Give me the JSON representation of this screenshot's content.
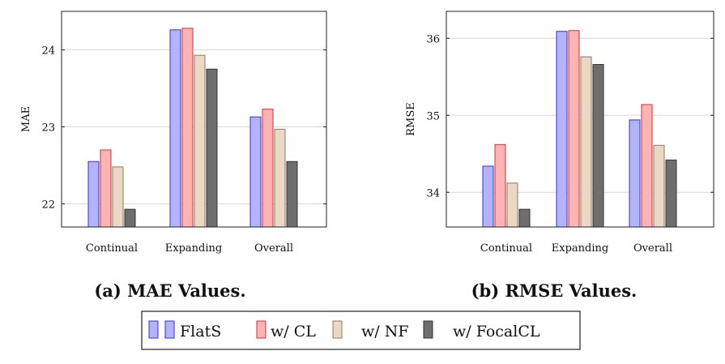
{
  "chart_data": [
    {
      "type": "bar",
      "title": "",
      "caption": "(a) MAE Values.",
      "xlabel": "",
      "ylabel": "MAE",
      "ylim": [
        21.7,
        24.5
      ],
      "yticks": [
        22,
        23,
        24
      ],
      "ytick_labels": [
        "22",
        "23",
        "24"
      ],
      "categories": [
        "Continual",
        "Expanding",
        "Overall"
      ],
      "series": [
        {
          "name": "FlatS",
          "values": [
            22.55,
            24.26,
            23.13
          ]
        },
        {
          "name": "w/ CL",
          "values": [
            22.7,
            24.28,
            23.23
          ]
        },
        {
          "name": "w/ NF",
          "values": [
            22.48,
            23.93,
            22.97
          ]
        },
        {
          "name": "w/ FocalCL",
          "values": [
            21.93,
            23.75,
            22.55
          ]
        }
      ]
    },
    {
      "type": "bar",
      "title": "",
      "caption": "(b) RMSE Values.",
      "xlabel": "",
      "ylabel": "RMSE",
      "ylim": [
        33.55,
        36.35
      ],
      "yticks": [
        34,
        35,
        36
      ],
      "ytick_labels": [
        "34",
        "35",
        "36"
      ],
      "categories": [
        "Continual",
        "Expanding",
        "Overall"
      ],
      "series": [
        {
          "name": "FlatS",
          "values": [
            34.34,
            36.09,
            34.94
          ]
        },
        {
          "name": "w/ CL",
          "values": [
            34.62,
            36.1,
            35.14
          ]
        },
        {
          "name": "w/ NF",
          "values": [
            34.12,
            35.76,
            34.61
          ]
        },
        {
          "name": "w/ FocalCL",
          "values": [
            33.78,
            35.66,
            34.42
          ]
        }
      ]
    }
  ],
  "legend": {
    "items": [
      {
        "label": "FlatS",
        "fill": "#b3b3ff",
        "stroke": "#3333cc"
      },
      {
        "label": "w/ CL",
        "fill": "#ffb3b3",
        "stroke": "#cc3333"
      },
      {
        "label": "w/ NF",
        "fill": "#e8d8c4",
        "stroke": "#8c7a66"
      },
      {
        "label": "w/ FocalCL",
        "fill": "#6e6e6e",
        "stroke": "#333333"
      }
    ]
  },
  "colors": {
    "series_fill": [
      "#b3b3ff",
      "#ffb3b3",
      "#e8d8c4",
      "#6e6e6e"
    ],
    "series_stroke": [
      "#3333cc",
      "#cc3333",
      "#8c7a66",
      "#333333"
    ],
    "grid": "#d8d8d8",
    "axis": "#222222"
  }
}
